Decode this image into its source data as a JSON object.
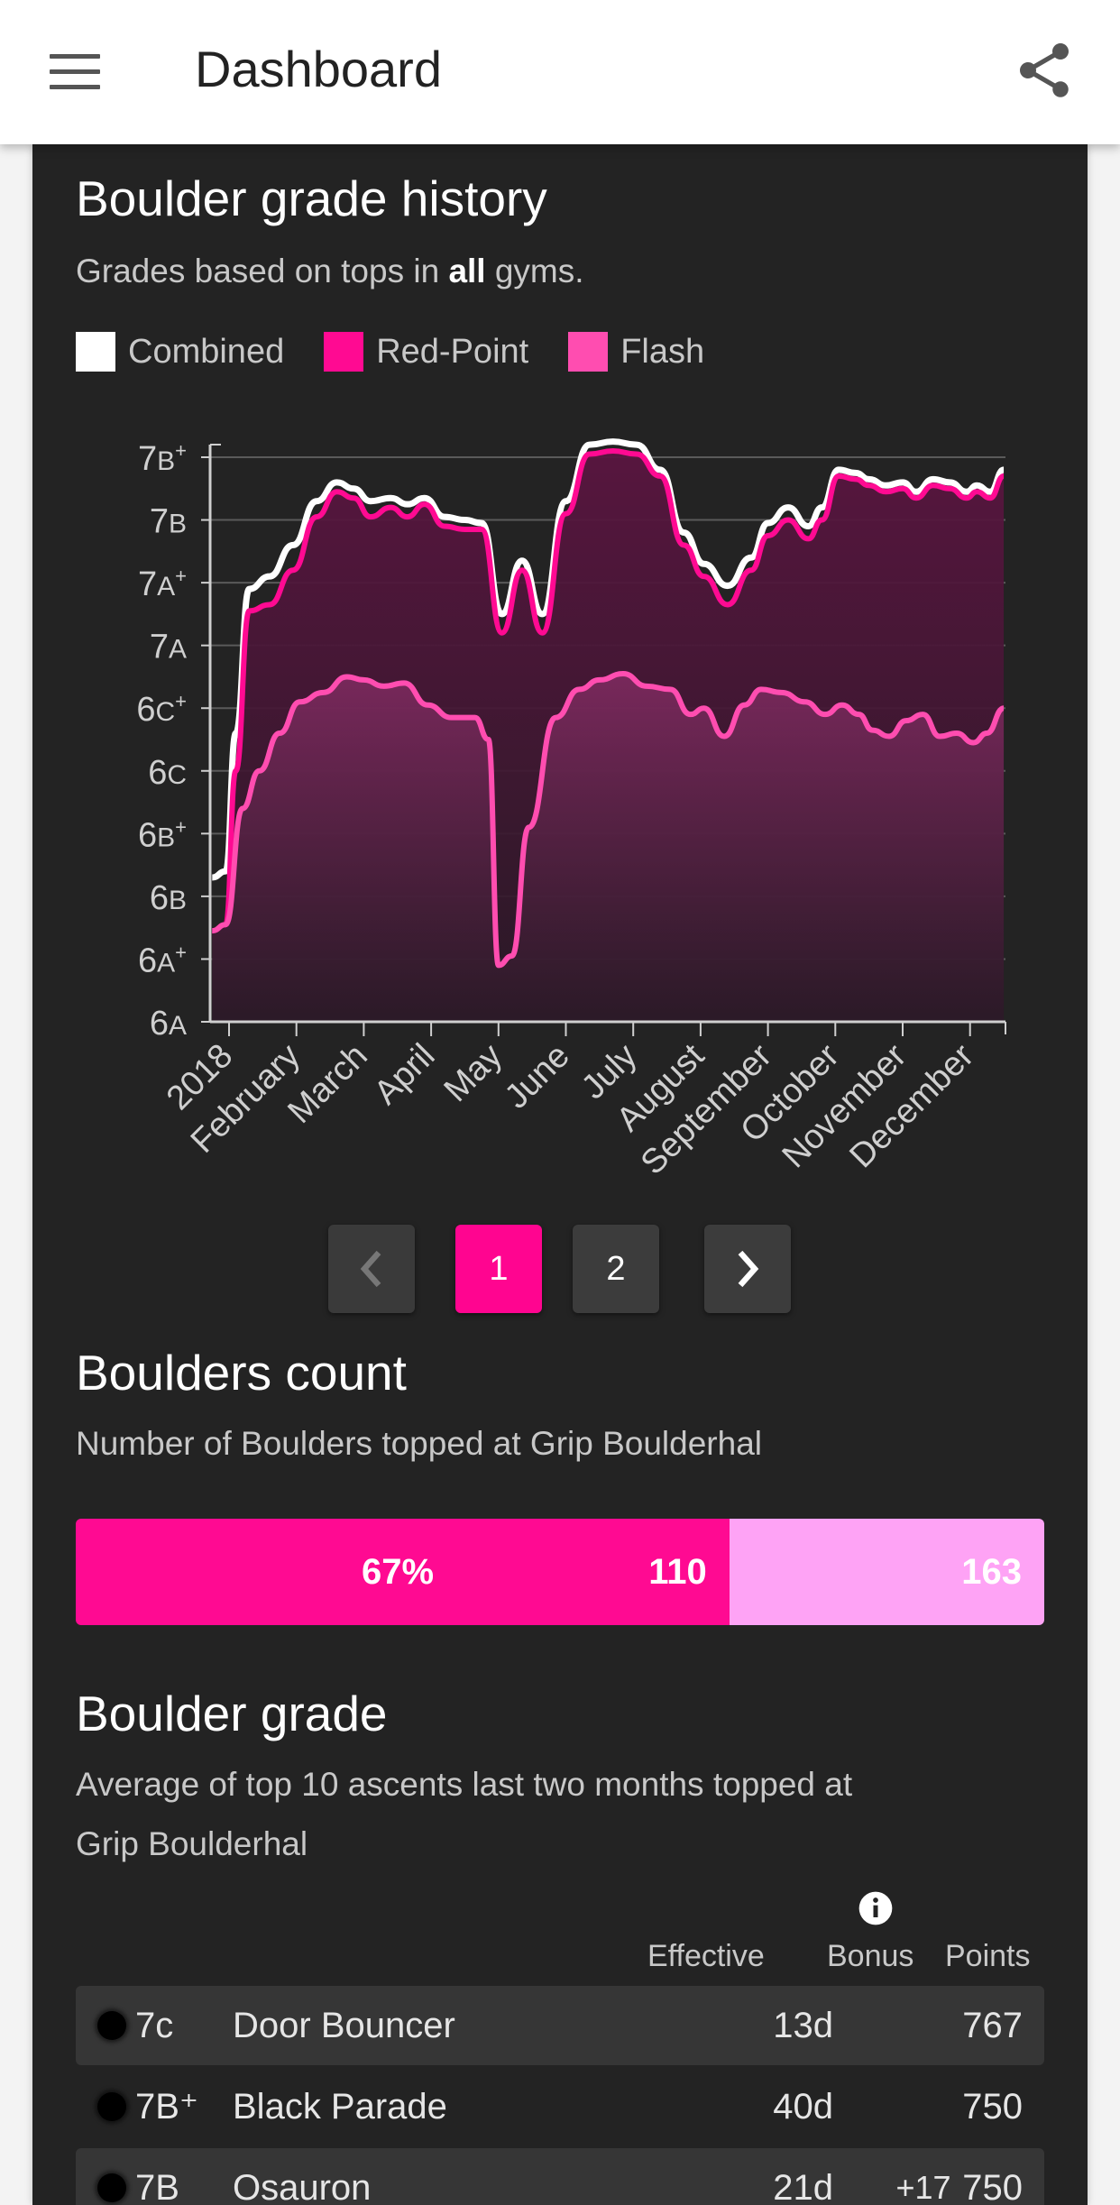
{
  "appbar": {
    "title": "Dashboard"
  },
  "history": {
    "title": "Boulder grade history",
    "subtitle_prefix": "Grades based on tops in ",
    "subtitle_bold": "all",
    "subtitle_suffix": " gyms.",
    "legend": [
      {
        "label": "Combined",
        "color": "#ffffff"
      },
      {
        "label": "Red-Point",
        "color": "#ff0a92"
      },
      {
        "label": "Flash",
        "color": "#ff4db0"
      }
    ]
  },
  "chart_data": {
    "type": "area",
    "title": "Boulder grade history",
    "y_tick_labels": [
      "6A",
      "6A+",
      "6B",
      "6B+",
      "6C",
      "6C+",
      "7A",
      "7A+",
      "7B",
      "7B+"
    ],
    "ylim": [
      0,
      9
    ],
    "x_tick_labels": [
      "2018",
      "February",
      "March",
      "April",
      "May",
      "June",
      "July",
      "August",
      "September",
      "October",
      "November",
      "December"
    ],
    "xlim": [
      0,
      11.5
    ],
    "grid": true,
    "legend_position": "top-left",
    "series": [
      {
        "name": "Combined",
        "color": "#ffffff",
        "points": [
          [
            -0.25,
            2.3
          ],
          [
            -0.05,
            2.4
          ],
          [
            0.1,
            4.6
          ],
          [
            0.3,
            6.9
          ],
          [
            0.6,
            7.1
          ],
          [
            0.95,
            7.6
          ],
          [
            1.3,
            8.3
          ],
          [
            1.6,
            8.6
          ],
          [
            1.85,
            8.5
          ],
          [
            2.1,
            8.3
          ],
          [
            2.4,
            8.35
          ],
          [
            2.65,
            8.25
          ],
          [
            2.9,
            8.35
          ],
          [
            3.2,
            8.05
          ],
          [
            3.5,
            8.0
          ],
          [
            3.75,
            7.95
          ],
          [
            4.05,
            6.5
          ],
          [
            4.35,
            7.35
          ],
          [
            4.65,
            6.5
          ],
          [
            5.0,
            8.3
          ],
          [
            5.35,
            9.2
          ],
          [
            5.7,
            9.25
          ],
          [
            6.05,
            9.2
          ],
          [
            6.4,
            8.8
          ],
          [
            6.75,
            7.8
          ],
          [
            7.05,
            7.3
          ],
          [
            7.4,
            6.95
          ],
          [
            7.75,
            7.4
          ],
          [
            8.0,
            7.95
          ],
          [
            8.3,
            8.2
          ],
          [
            8.6,
            7.9
          ],
          [
            8.8,
            8.2
          ],
          [
            9.05,
            8.8
          ],
          [
            9.3,
            8.75
          ],
          [
            9.5,
            8.65
          ],
          [
            9.75,
            8.55
          ],
          [
            10.0,
            8.6
          ],
          [
            10.2,
            8.45
          ],
          [
            10.45,
            8.65
          ],
          [
            10.7,
            8.6
          ],
          [
            10.95,
            8.45
          ],
          [
            11.1,
            8.55
          ],
          [
            11.3,
            8.45
          ],
          [
            11.5,
            8.8
          ]
        ]
      },
      {
        "name": "Red-Point",
        "color": "#ff0a92",
        "points": [
          [
            -0.25,
            1.45
          ],
          [
            -0.05,
            1.55
          ],
          [
            0.1,
            4.0
          ],
          [
            0.3,
            6.55
          ],
          [
            0.6,
            6.65
          ],
          [
            0.95,
            7.2
          ],
          [
            1.3,
            8.05
          ],
          [
            1.6,
            8.45
          ],
          [
            1.85,
            8.35
          ],
          [
            2.1,
            8.05
          ],
          [
            2.4,
            8.2
          ],
          [
            2.65,
            8.05
          ],
          [
            2.9,
            8.25
          ],
          [
            3.2,
            7.9
          ],
          [
            3.5,
            7.85
          ],
          [
            3.75,
            7.85
          ],
          [
            4.05,
            6.2
          ],
          [
            4.35,
            7.2
          ],
          [
            4.65,
            6.2
          ],
          [
            5.0,
            8.1
          ],
          [
            5.35,
            9.05
          ],
          [
            5.7,
            9.1
          ],
          [
            6.05,
            9.05
          ],
          [
            6.4,
            8.7
          ],
          [
            6.75,
            7.6
          ],
          [
            7.05,
            7.1
          ],
          [
            7.4,
            6.65
          ],
          [
            7.75,
            7.2
          ],
          [
            8.0,
            7.75
          ],
          [
            8.3,
            8.0
          ],
          [
            8.6,
            7.7
          ],
          [
            8.8,
            8.0
          ],
          [
            9.05,
            8.7
          ],
          [
            9.3,
            8.65
          ],
          [
            9.5,
            8.55
          ],
          [
            9.75,
            8.45
          ],
          [
            10.0,
            8.5
          ],
          [
            10.2,
            8.35
          ],
          [
            10.45,
            8.55
          ],
          [
            10.7,
            8.5
          ],
          [
            10.95,
            8.35
          ],
          [
            11.1,
            8.45
          ],
          [
            11.3,
            8.35
          ],
          [
            11.5,
            8.7
          ]
        ]
      },
      {
        "name": "Flash",
        "color": "#ff4db0",
        "points": [
          [
            -0.25,
            1.45
          ],
          [
            -0.05,
            1.55
          ],
          [
            0.2,
            3.4
          ],
          [
            0.45,
            4.0
          ],
          [
            0.75,
            4.6
          ],
          [
            1.05,
            5.1
          ],
          [
            1.4,
            5.25
          ],
          [
            1.75,
            5.5
          ],
          [
            2.0,
            5.45
          ],
          [
            2.3,
            5.35
          ],
          [
            2.6,
            5.4
          ],
          [
            2.95,
            5.05
          ],
          [
            3.3,
            4.85
          ],
          [
            3.65,
            4.85
          ],
          [
            3.85,
            4.5
          ],
          [
            4.0,
            0.9
          ],
          [
            4.2,
            1.05
          ],
          [
            4.45,
            3.1
          ],
          [
            4.85,
            4.85
          ],
          [
            5.2,
            5.3
          ],
          [
            5.5,
            5.45
          ],
          [
            5.85,
            5.55
          ],
          [
            6.2,
            5.35
          ],
          [
            6.55,
            5.3
          ],
          [
            6.85,
            4.9
          ],
          [
            7.05,
            5.0
          ],
          [
            7.35,
            4.55
          ],
          [
            7.65,
            5.05
          ],
          [
            7.9,
            5.3
          ],
          [
            8.2,
            5.25
          ],
          [
            8.55,
            5.1
          ],
          [
            8.85,
            4.9
          ],
          [
            9.1,
            5.05
          ],
          [
            9.35,
            4.9
          ],
          [
            9.55,
            4.65
          ],
          [
            9.8,
            4.55
          ],
          [
            10.05,
            4.8
          ],
          [
            10.3,
            4.9
          ],
          [
            10.55,
            4.55
          ],
          [
            10.8,
            4.6
          ],
          [
            11.05,
            4.45
          ],
          [
            11.25,
            4.6
          ],
          [
            11.5,
            5.0
          ]
        ]
      }
    ]
  },
  "pager": {
    "prev": "‹",
    "page1": "1",
    "page2": "2",
    "next": "›"
  },
  "count": {
    "title": "Boulders count",
    "subtitle": "Number of Boulders topped at Grip Boulderhal",
    "percent": "67%",
    "topped": "110",
    "total": "163",
    "fraction": 0.675
  },
  "grade": {
    "title": "Boulder grade",
    "subtitle_line1": "Average of top 10 ascents last two months topped at",
    "subtitle_line2": "Grip Boulderhal",
    "headers": {
      "effective": "Effective",
      "bonus": "Bonus",
      "points": "Points"
    },
    "rows": [
      {
        "grade": "7c",
        "name": "Door Bouncer",
        "effective": "13d",
        "bonus": "",
        "points": "767"
      },
      {
        "grade": "7B⁺",
        "name": "Black Parade",
        "effective": "40d",
        "bonus": "",
        "points": "750"
      },
      {
        "grade": "7B",
        "name": "Osauron",
        "effective": "21d",
        "bonus": "+17",
        "points": "750"
      }
    ]
  }
}
